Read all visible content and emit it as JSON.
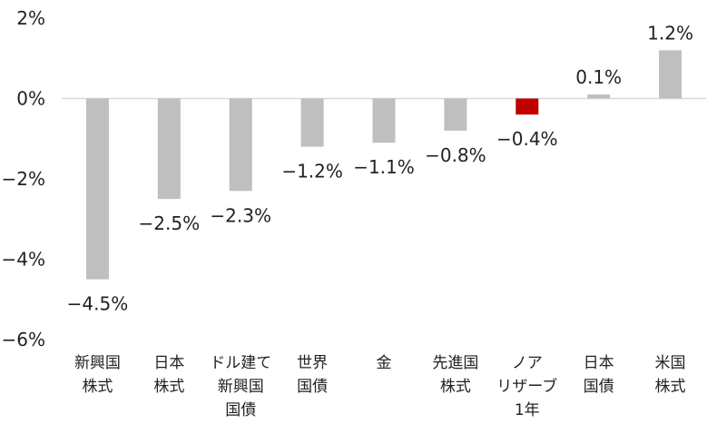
{
  "chart_data": {
    "type": "bar",
    "title": "",
    "xlabel": "",
    "ylabel": "",
    "ylim": [
      -6,
      2
    ],
    "yticks": [
      2,
      0,
      -2,
      -4,
      -6
    ],
    "ytick_labels": [
      "2%",
      "0%",
      "−2%",
      "−4%",
      "−6%"
    ],
    "grid": false,
    "categories": [
      [
        "新興国",
        "株式"
      ],
      [
        "日本",
        "株式"
      ],
      [
        "ドル建て",
        "新興国",
        "国債"
      ],
      [
        "世界",
        "国債"
      ],
      [
        "金"
      ],
      [
        "先進国",
        "株式"
      ],
      [
        "ノア",
        "リザーブ",
        "1年"
      ],
      [
        "日本",
        "国債"
      ],
      [
        "米国",
        "株式"
      ]
    ],
    "values": [
      -4.5,
      -2.5,
      -2.3,
      -1.2,
      -1.1,
      -0.8,
      -0.4,
      0.1,
      1.2
    ],
    "data_labels": [
      "−4.5%",
      "−2.5%",
      "−2.3%",
      "−1.2%",
      "−1.1%",
      "−0.8%",
      "−0.4%",
      "0.1%",
      "1.2%"
    ],
    "colors": [
      "#bfbfbf",
      "#bfbfbf",
      "#bfbfbf",
      "#bfbfbf",
      "#bfbfbf",
      "#bfbfbf",
      "#c00000",
      "#bfbfbf",
      "#bfbfbf"
    ],
    "axis_color": "#d9d9d9"
  }
}
